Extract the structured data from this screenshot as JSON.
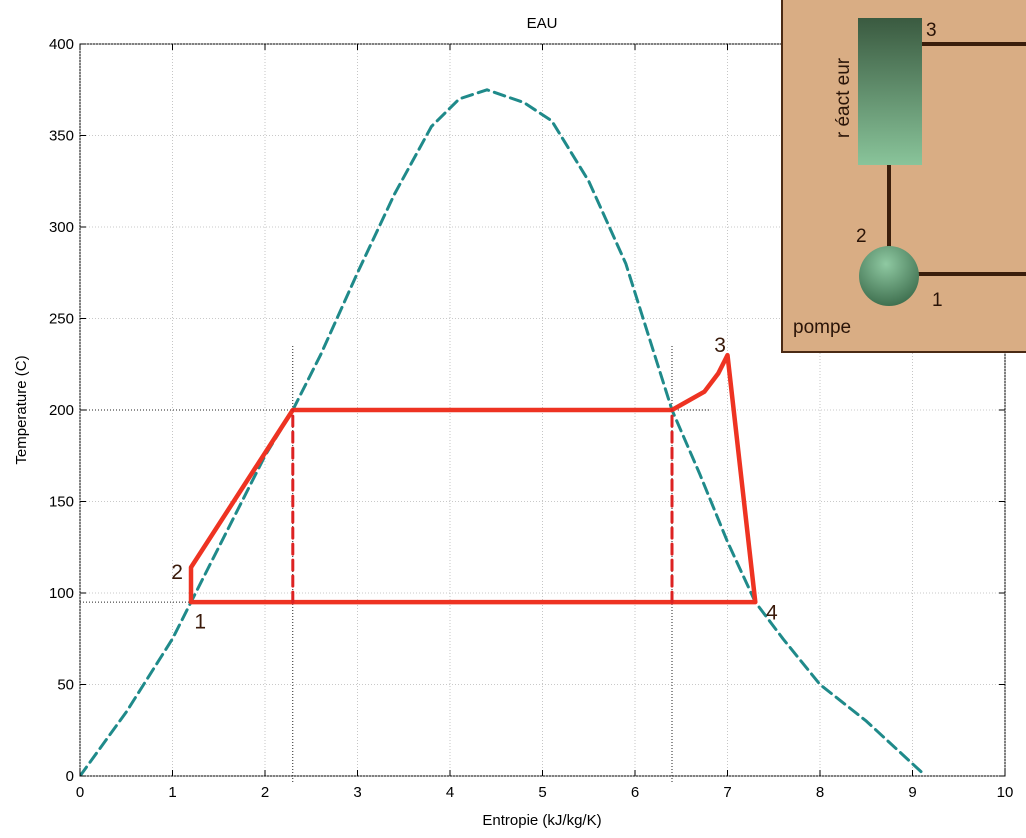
{
  "chart_data": {
    "type": "line",
    "title": "EAU",
    "xlabel": "Entropie (kJ/kg/K)",
    "ylabel": "Temperature (C)",
    "xlim": [
      0,
      10
    ],
    "ylim": [
      0,
      400
    ],
    "xticks": [
      "0",
      "1",
      "2",
      "3",
      "4",
      "5",
      "6",
      "7",
      "8",
      "9",
      "10"
    ],
    "yticks": [
      "0",
      "50",
      "100",
      "150",
      "200",
      "250",
      "300",
      "350",
      "400"
    ],
    "grid": true,
    "series": [
      {
        "style": "dashed",
        "color": "#1f8a8a",
        "x": [
          0,
          0.5,
          1.0,
          1.2,
          1.6,
          2.0,
          2.3,
          2.6,
          3.0,
          3.4,
          3.8,
          4.1,
          4.4,
          4.8,
          5.1,
          5.5,
          5.9,
          6.4,
          6.7,
          7.0,
          7.3,
          7.6,
          8.0,
          8.5,
          9.1
        ],
        "y": [
          0,
          35,
          75,
          95,
          135,
          175,
          200,
          230,
          275,
          318,
          355,
          370,
          375,
          368,
          358,
          325,
          280,
          200,
          165,
          128,
          95,
          75,
          50,
          30,
          2
        ]
      },
      {
        "style": "solid",
        "color": "#ee3322",
        "x": [
          1.2,
          1.2,
          2.3,
          6.4,
          6.75,
          6.9,
          7.0,
          7.3,
          2.3,
          1.2
        ],
        "y": [
          95,
          114,
          200,
          200,
          210,
          220,
          230,
          95,
          95,
          95
        ]
      },
      {
        "style": "dashed",
        "color": "#dd2222",
        "x": [
          2.3,
          2.3
        ],
        "y": [
          95,
          200
        ]
      },
      {
        "style": "dashed",
        "color": "#dd2222",
        "x": [
          6.4,
          6.4
        ],
        "y": [
          95,
          200
        ]
      }
    ],
    "point_labels": [
      {
        "text": "1",
        "x": 1.3,
        "y": 85
      },
      {
        "text": "2",
        "x": 1.05,
        "y": 112
      },
      {
        "text": "3",
        "x": 6.92,
        "y": 236
      },
      {
        "text": "4",
        "x": 7.48,
        "y": 90
      }
    ],
    "reference_lines": [
      {
        "x": 2.3,
        "y": 200
      },
      {
        "x": 1.2,
        "y": 95
      },
      {
        "x": 6.4,
        "y": 200
      }
    ]
  },
  "inset": {
    "reactor_label": "r éact eur",
    "pump_label": "pompe",
    "node_3": "3",
    "node_2": "2",
    "node_1": "1",
    "reactor_gradient": [
      "#3a5a40",
      "#89c49a"
    ],
    "pump_gradient": [
      "#3a6a4a",
      "#8fc9a2"
    ],
    "background": "#d9ad84"
  }
}
